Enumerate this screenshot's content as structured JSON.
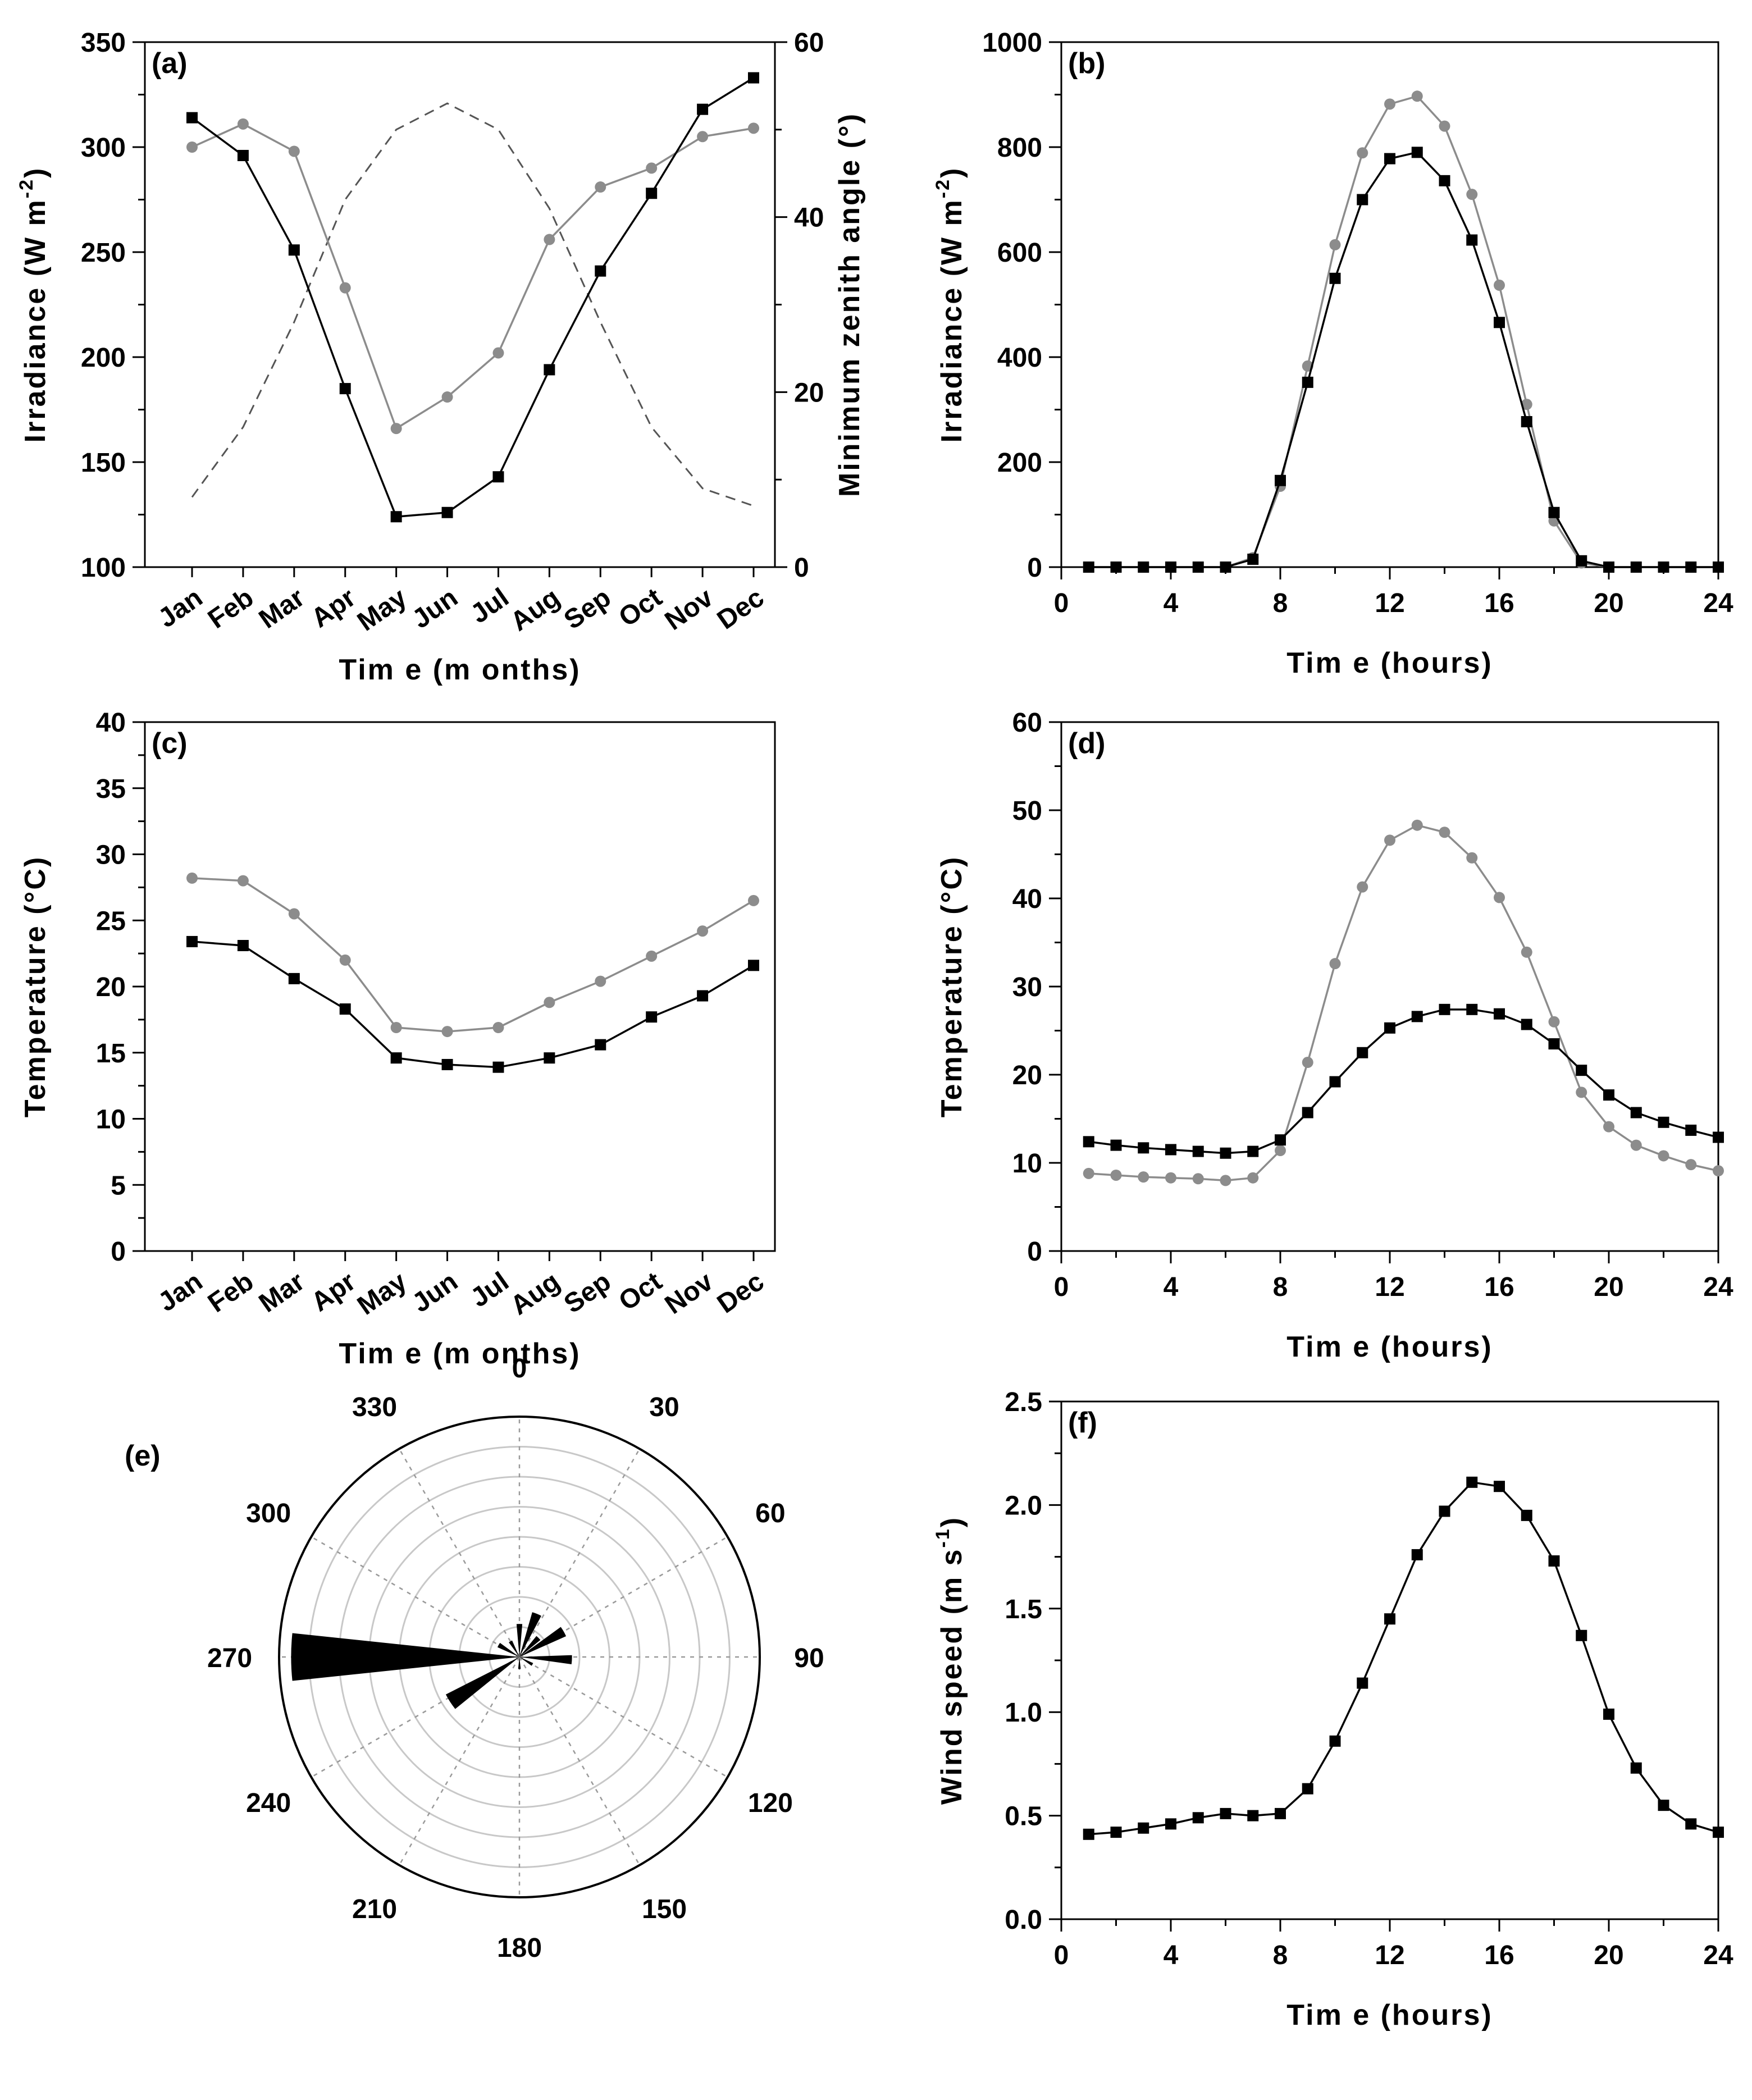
{
  "colors": {
    "black": "#000000",
    "gray": "#8c8c8c",
    "dashed": "#555555",
    "grid": "#c8c8c8"
  },
  "chart_data": [
    {
      "id": "a",
      "type": "line",
      "panel_label": "(a)",
      "categories": [
        "Jan",
        "Feb",
        "Mar",
        "Apr",
        "May",
        "Jun",
        "Jul",
        "Aug",
        "Sep",
        "Oct",
        "Nov",
        "Dec"
      ],
      "series": [
        {
          "name": "black-squares",
          "color": "black",
          "marker": "square",
          "values": [
            314,
            296,
            251,
            185,
            124,
            126,
            143,
            194,
            241,
            278,
            318,
            333
          ]
        },
        {
          "name": "gray-circles",
          "color": "gray",
          "marker": "circle",
          "values": [
            300,
            311,
            298,
            233,
            166,
            181,
            202,
            256,
            281,
            290,
            305,
            309
          ]
        }
      ],
      "secondary_series": {
        "name": "minimum-zenith-angle",
        "style": "dashed",
        "x": [
          1,
          2,
          3,
          4,
          5,
          6,
          7,
          8,
          9,
          10,
          11,
          12
        ],
        "values": [
          8,
          16,
          28,
          42,
          50,
          53,
          50,
          41,
          28,
          16,
          9,
          7
        ]
      },
      "xlabel": "Tim e (m onths)",
      "ylabel": "Irradiance (W m",
      "ylabel_sup": "-2",
      "ylabel_close": ")",
      "y2label": "Minimum zenith angle (°)",
      "ylim": [
        100,
        350
      ],
      "yticks": [
        100,
        150,
        200,
        250,
        300,
        350
      ],
      "ytick_labels": [
        "100",
        "150",
        "200",
        "250",
        "300",
        "350"
      ],
      "y2lim": [
        0,
        60
      ],
      "y2ticks": [
        0,
        20,
        40,
        60
      ],
      "y2tick_labels": [
        "0",
        "20",
        "40",
        "60"
      ]
    },
    {
      "id": "b",
      "type": "line",
      "panel_label": "(b)",
      "series": [
        {
          "name": "black-squares",
          "color": "black",
          "marker": "square",
          "x": [
            1,
            2,
            3,
            4,
            5,
            6,
            7,
            8,
            9,
            10,
            11,
            12,
            13,
            14,
            15,
            16,
            17,
            18,
            19,
            20,
            21,
            22,
            23,
            24
          ],
          "values": [
            0,
            0,
            0,
            0,
            0,
            0,
            15,
            165,
            352,
            550,
            700,
            778,
            790,
            736,
            623,
            466,
            277,
            104,
            12,
            0,
            0,
            0,
            0,
            0
          ]
        },
        {
          "name": "gray-circles",
          "color": "gray",
          "marker": "circle",
          "x": [
            1,
            2,
            3,
            4,
            5,
            6,
            7,
            8,
            9,
            10,
            11,
            12,
            13,
            14,
            15,
            16,
            17,
            18,
            19,
            20,
            21,
            22,
            23,
            24
          ],
          "values": [
            0,
            0,
            0,
            0,
            0,
            0,
            18,
            154,
            383,
            614,
            789,
            882,
            897,
            840,
            710,
            537,
            310,
            88,
            8,
            0,
            0,
            0,
            0,
            0
          ]
        }
      ],
      "xlabel": "Tim e (hours)",
      "ylabel": "Irradiance (W m",
      "ylabel_sup": "-2",
      "ylabel_close": ")",
      "xlim": [
        0,
        24
      ],
      "xticks": [
        0,
        4,
        8,
        12,
        16,
        20,
        24
      ],
      "xtick_labels": [
        "0",
        "4",
        "8",
        "12",
        "16",
        "20",
        "24"
      ],
      "ylim": [
        0,
        1000
      ],
      "yticks": [
        0,
        200,
        400,
        600,
        800,
        1000
      ],
      "ytick_labels": [
        "0",
        "200",
        "400",
        "600",
        "800",
        "1000"
      ]
    },
    {
      "id": "c",
      "type": "line",
      "panel_label": "(c)",
      "categories": [
        "Jan",
        "Feb",
        "Mar",
        "Apr",
        "May",
        "Jun",
        "Jul",
        "Aug",
        "Sep",
        "Oct",
        "Nov",
        "Dec"
      ],
      "series": [
        {
          "name": "black-squares",
          "color": "black",
          "marker": "square",
          "values": [
            23.4,
            23.1,
            20.6,
            18.3,
            14.6,
            14.1,
            13.9,
            14.6,
            15.6,
            17.7,
            19.3,
            21.6
          ]
        },
        {
          "name": "gray-circles",
          "color": "gray",
          "marker": "circle",
          "values": [
            28.2,
            28.0,
            25.5,
            22.0,
            16.9,
            16.6,
            16.9,
            18.8,
            20.4,
            22.3,
            24.2,
            26.5
          ]
        }
      ],
      "xlabel": "Tim e (m onths)",
      "ylabel": "Temperature (°C)",
      "ylim": [
        0,
        40
      ],
      "yticks": [
        0,
        5,
        10,
        15,
        20,
        25,
        30,
        35,
        40
      ],
      "ytick_labels": [
        "0",
        "5",
        "10",
        "15",
        "20",
        "25",
        "30",
        "35",
        "40"
      ]
    },
    {
      "id": "d",
      "type": "line",
      "panel_label": "(d)",
      "series": [
        {
          "name": "black-squares",
          "color": "black",
          "marker": "square",
          "x": [
            1,
            2,
            3,
            4,
            5,
            6,
            7,
            8,
            9,
            10,
            11,
            12,
            13,
            14,
            15,
            16,
            17,
            18,
            19,
            20,
            21,
            22,
            23,
            24
          ],
          "values": [
            12.4,
            12.0,
            11.7,
            11.5,
            11.3,
            11.1,
            11.3,
            12.6,
            15.7,
            19.2,
            22.5,
            25.3,
            26.6,
            27.4,
            27.4,
            26.9,
            25.7,
            23.5,
            20.5,
            17.7,
            15.7,
            14.6,
            13.7,
            12.9
          ]
        },
        {
          "name": "gray-circles",
          "color": "gray",
          "marker": "circle",
          "x": [
            1,
            2,
            3,
            4,
            5,
            6,
            7,
            8,
            9,
            10,
            11,
            12,
            13,
            14,
            15,
            16,
            17,
            18,
            19,
            20,
            21,
            22,
            23,
            24
          ],
          "values": [
            8.8,
            8.6,
            8.4,
            8.3,
            8.2,
            8.0,
            8.3,
            11.4,
            21.4,
            32.6,
            41.3,
            46.6,
            48.3,
            47.5,
            44.6,
            40.1,
            33.9,
            26.0,
            18.0,
            14.1,
            12.0,
            10.8,
            9.8,
            9.1
          ]
        }
      ],
      "xlabel": "Tim e (hours)",
      "ylabel": "Temperature (°C)",
      "xlim": [
        0,
        24
      ],
      "xticks": [
        0,
        4,
        8,
        12,
        16,
        20,
        24
      ],
      "xtick_labels": [
        "0",
        "4",
        "8",
        "12",
        "16",
        "20",
        "24"
      ],
      "ylim": [
        0,
        60
      ],
      "yticks": [
        0,
        10,
        20,
        30,
        40,
        50,
        60
      ],
      "ytick_labels": [
        "0",
        "10",
        "20",
        "30",
        "40",
        "50",
        "60"
      ]
    },
    {
      "id": "e",
      "type": "polar-bar",
      "panel_label": "(e)",
      "angle_labels": [
        {
          "angle": 0,
          "text": "0"
        },
        {
          "angle": 30,
          "text": "30"
        },
        {
          "angle": 60,
          "text": "60"
        },
        {
          "angle": 90,
          "text": "90"
        },
        {
          "angle": 120,
          "text": "120"
        },
        {
          "angle": 150,
          "text": "150"
        },
        {
          "angle": 180,
          "text": "180"
        },
        {
          "angle": 210,
          "text": "210"
        },
        {
          "angle": 240,
          "text": "240"
        },
        {
          "angle": 270,
          "text": "270"
        },
        {
          "angle": 300,
          "text": "300"
        },
        {
          "angle": 330,
          "text": "330"
        }
      ],
      "rings": 8,
      "sectors": [
        {
          "direction": 0,
          "value": 1.1,
          "width": 10
        },
        {
          "direction": 22,
          "value": 1.55,
          "width": 12
        },
        {
          "direction": 45,
          "value": 0.9,
          "width": 12
        },
        {
          "direction": 60,
          "value": 1.7,
          "width": 12
        },
        {
          "direction": 93,
          "value": 1.75,
          "width": 10
        },
        {
          "direction": 120,
          "value": 0.5,
          "width": 12
        },
        {
          "direction": 180,
          "value": 0.4,
          "width": 12
        },
        {
          "direction": 237,
          "value": 2.75,
          "width": 12
        },
        {
          "direction": 270,
          "value": 7.6,
          "width": 12
        },
        {
          "direction": 300,
          "value": 0.8,
          "width": 12
        },
        {
          "direction": 330,
          "value": 0.6,
          "width": 12
        }
      ]
    },
    {
      "id": "f",
      "type": "line",
      "panel_label": "(f)",
      "series": [
        {
          "name": "black-squares",
          "color": "black",
          "marker": "square",
          "x": [
            1,
            2,
            3,
            4,
            5,
            6,
            7,
            8,
            9,
            10,
            11,
            12,
            13,
            14,
            15,
            16,
            17,
            18,
            19,
            20,
            21,
            22,
            23,
            24
          ],
          "values": [
            0.41,
            0.42,
            0.44,
            0.46,
            0.49,
            0.51,
            0.5,
            0.51,
            0.63,
            0.86,
            1.14,
            1.45,
            1.76,
            1.97,
            2.11,
            2.09,
            1.95,
            1.73,
            1.37,
            0.99,
            0.73,
            0.55,
            0.46,
            0.42
          ]
        }
      ],
      "xlabel": "Tim e (hours)",
      "ylabel": "Wind speed (m s",
      "ylabel_sup": "-1",
      "ylabel_close": ")",
      "xlim": [
        0,
        24
      ],
      "xticks": [
        0,
        4,
        8,
        12,
        16,
        20,
        24
      ],
      "xtick_labels": [
        "0",
        "4",
        "8",
        "12",
        "16",
        "20",
        "24"
      ],
      "ylim": [
        0,
        2.5
      ],
      "yticks": [
        0,
        0.5,
        1.0,
        1.5,
        2.0,
        2.5
      ],
      "ytick_labels": [
        "0.0",
        "0.5",
        "1.0",
        "1.5",
        "2.0",
        "2.5"
      ]
    }
  ]
}
